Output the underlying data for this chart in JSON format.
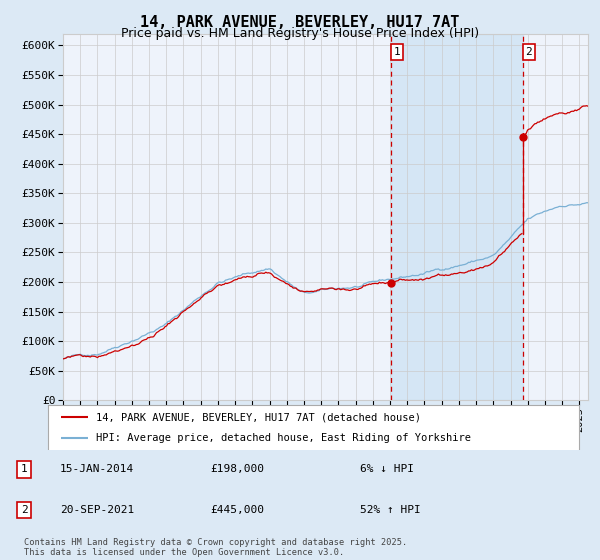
{
  "title": "14, PARK AVENUE, BEVERLEY, HU17 7AT",
  "subtitle": "Price paid vs. HM Land Registry's House Price Index (HPI)",
  "bg_color": "#dce9f5",
  "plot_bg_color": "#eef3fb",
  "grid_color": "#cccccc",
  "hpi_color": "#7ab0d4",
  "price_color": "#cc0000",
  "purchase1_date": "15-JAN-2014",
  "purchase1_price": 198000,
  "purchase1_x": 2014.04,
  "purchase2_date": "20-SEP-2021",
  "purchase2_price": 445000,
  "purchase2_x": 2021.72,
  "legend_line1": "14, PARK AVENUE, BEVERLEY, HU17 7AT (detached house)",
  "legend_line2": "HPI: Average price, detached house, East Riding of Yorkshire",
  "footnote": "Contains HM Land Registry data © Crown copyright and database right 2025.\nThis data is licensed under the Open Government Licence v3.0.",
  "title_fontsize": 11,
  "subtitle_fontsize": 9,
  "tick_fontsize": 8,
  "ylim": [
    0,
    620000
  ],
  "xlim_start": 1995,
  "xlim_end": 2025.5
}
